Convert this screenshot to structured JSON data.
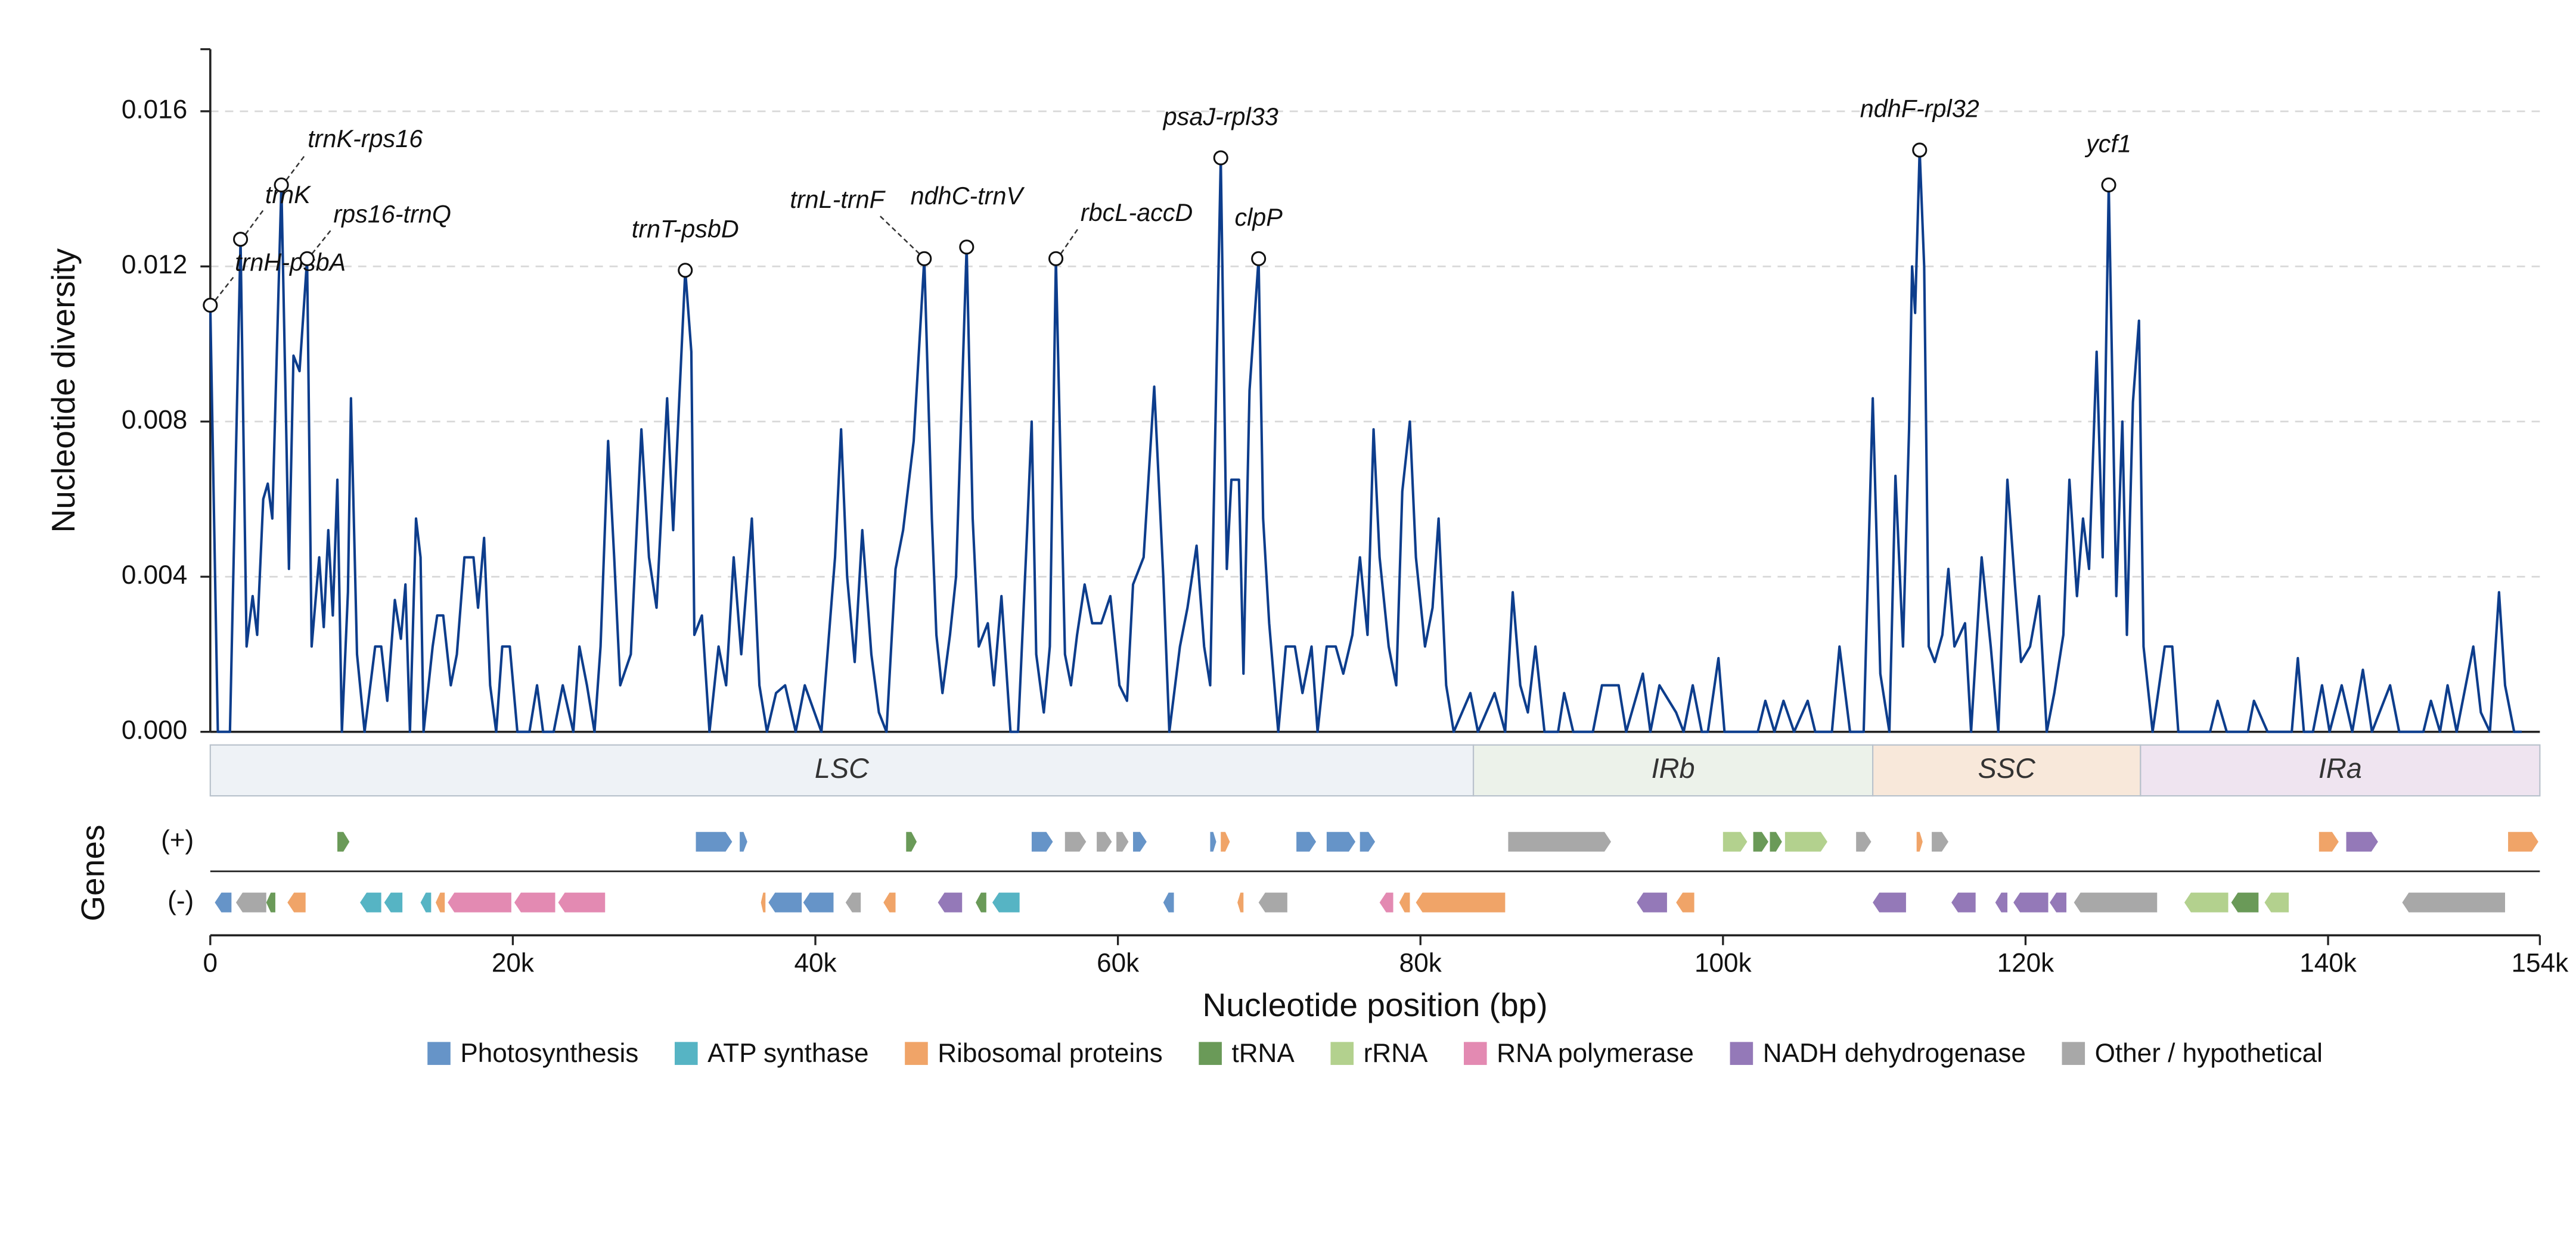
{
  "chart_data": {
    "type": "line",
    "y_label": "Nucleotide diversity",
    "x_label": "Nucleotide position (bp)",
    "genes_label": "Genes",
    "xlim": [
      0,
      154000
    ],
    "ylim": [
      0,
      0.0176
    ],
    "xticks": [
      0,
      {
        "value": 20000,
        "label": "20k"
      },
      {
        "value": 40000,
        "label": "40k"
      },
      {
        "value": 60000,
        "label": "60k"
      },
      {
        "value": 80000,
        "label": "80k"
      },
      {
        "value": 100000,
        "label": "100k"
      },
      {
        "value": 120000,
        "label": "120k"
      },
      {
        "value": 140000,
        "label": "140k"
      },
      {
        "value": 154000,
        "label": "154k"
      }
    ],
    "yticks": [
      {
        "value": 0,
        "label": "0.000"
      },
      {
        "value": 0.004,
        "label": "0.004"
      },
      {
        "value": 0.008,
        "label": "0.008"
      },
      {
        "value": 0.012,
        "label": "0.012"
      },
      {
        "value": 0.016,
        "label": "0.016"
      }
    ],
    "grid": true,
    "color": "#0d3d8c",
    "x": [
      0,
      500,
      1300,
      2000,
      2400,
      2800,
      3100,
      3500,
      3800,
      4100,
      4700,
      5200,
      5500,
      5900,
      6400,
      6700,
      7200,
      7500,
      7800,
      8100,
      8400,
      8700,
      9100,
      9300,
      9700,
      10200,
      10900,
      11300,
      11700,
      12200,
      12600,
      12900,
      13200,
      13600,
      13900,
      14100,
      14700,
      15000,
      15400,
      15900,
      16300,
      16800,
      17400,
      17700,
      18100,
      18500,
      18900,
      19300,
      19800,
      20300,
      21100,
      21600,
      22000,
      22700,
      23300,
      24000,
      24400,
      24900,
      25400,
      25800,
      26300,
      26700,
      27100,
      27800,
      28500,
      29000,
      29500,
      30200,
      30600,
      31400,
      31800,
      32000,
      32500,
      33000,
      33600,
      34100,
      34600,
      35100,
      35800,
      36300,
      36800,
      37400,
      38000,
      38700,
      39300,
      40400,
      41300,
      41700,
      42100,
      42600,
      43100,
      43700,
      44200,
      44700,
      45300,
      45800,
      46500,
      47200,
      47700,
      48000,
      48400,
      48900,
      49300,
      50000,
      50400,
      50800,
      51400,
      51800,
      52300,
      52900,
      53400,
      54000,
      54300,
      54600,
      55100,
      55500,
      55900,
      56500,
      56900,
      57300,
      57800,
      58300,
      58900,
      59500,
      60100,
      60600,
      61000,
      61700,
      62400,
      63000,
      63400,
      64100,
      64600,
      65200,
      65700,
      66100,
      66800,
      67200,
      67500,
      68000,
      68300,
      68700,
      69300,
      69600,
      70000,
      70600,
      71100,
      71700,
      72200,
      72800,
      73200,
      73800,
      74400,
      74900,
      75500,
      76000,
      76500,
      76900,
      77300,
      77900,
      78400,
      78800,
      79300,
      79700,
      80300,
      80800,
      81200,
      81700,
      82200,
      83300,
      83800,
      84900,
      85600,
      86100,
      86600,
      87100,
      87600,
      88200,
      89100,
      89500,
      90100,
      91400,
      92000,
      93100,
      93600,
      94700,
      95200,
      95800,
      96900,
      97400,
      98000,
      98600,
      99000,
      99700,
      100100,
      102300,
      102800,
      103400,
      104000,
      104700,
      105600,
      106100,
      107200,
      107700,
      108400,
      109300,
      109900,
      110400,
      111000,
      111400,
      111900,
      112300,
      112500,
      112700,
      113000,
      113300,
      113600,
      114000,
      114500,
      114900,
      115300,
      116000,
      116400,
      117100,
      117700,
      118200,
      118800,
      119300,
      119700,
      120300,
      120900,
      121400,
      121900,
      122500,
      122900,
      123400,
      123800,
      124200,
      124700,
      125100,
      125500,
      126000,
      126400,
      126700,
      127100,
      127500,
      127800,
      128400,
      129200,
      129700,
      130100,
      132200,
      132700,
      133300,
      134700,
      135100,
      136000,
      137600,
      138000,
      138400,
      139000,
      139600,
      140100,
      140900,
      141600,
      142300,
      142900,
      144100,
      144700,
      146300,
      146800,
      147400,
      147900,
      148500,
      149600,
      150100,
      150700,
      151300,
      151700,
      152300,
      152800
    ],
    "values": [
      0.011,
      0,
      0,
      0.0127,
      0.0022,
      0.0035,
      0.0025,
      0.006,
      0.0064,
      0.0055,
      0.0141,
      0.0042,
      0.0097,
      0.0093,
      0.0122,
      0.0022,
      0.0045,
      0.0027,
      0.0052,
      0.003,
      0.0065,
      0,
      0.0036,
      0.0086,
      0.002,
      0,
      0.0022,
      0.0022,
      0.0008,
      0.0034,
      0.0024,
      0.0038,
      0,
      0.0055,
      0.0045,
      0,
      0.0022,
      0.003,
      0.003,
      0.0012,
      0.002,
      0.0045,
      0.0045,
      0.0032,
      0.005,
      0.0012,
      0,
      0.0022,
      0.0022,
      0,
      0,
      0.0012,
      0,
      0,
      0.0012,
      0,
      0.0022,
      0.0012,
      0,
      0.0022,
      0.0075,
      0.0045,
      0.0012,
      0.002,
      0.0078,
      0.0045,
      0.0032,
      0.0086,
      0.0052,
      0.0119,
      0.0098,
      0.0025,
      0.003,
      0,
      0.0022,
      0.0012,
      0.0045,
      0.002,
      0.0055,
      0.0012,
      0,
      0.001,
      0.0012,
      0,
      0.0012,
      0,
      0.0045,
      0.0078,
      0.004,
      0.0018,
      0.0052,
      0.002,
      0.0005,
      0,
      0.0042,
      0.0052,
      0.0075,
      0.0122,
      0.0055,
      0.0025,
      0.001,
      0.0025,
      0.004,
      0.0125,
      0.0055,
      0.0022,
      0.0028,
      0.0012,
      0.0035,
      0,
      0,
      0.0052,
      0.008,
      0.002,
      0.0005,
      0.0022,
      0.0122,
      0.002,
      0.0012,
      0.0025,
      0.0038,
      0.0028,
      0.0028,
      0.0035,
      0.0012,
      0.0008,
      0.0038,
      0.0045,
      0.0089,
      0.004,
      0,
      0.0022,
      0.0032,
      0.0048,
      0.0022,
      0.0012,
      0.0148,
      0.0042,
      0.0065,
      0.0065,
      0.0015,
      0.0088,
      0.0122,
      0.0055,
      0.0028,
      0,
      0.0022,
      0.0022,
      0.001,
      0.0022,
      0,
      0.0022,
      0.0022,
      0.0015,
      0.0025,
      0.0045,
      0.0025,
      0.0078,
      0.0045,
      0.0022,
      0.0012,
      0.0062,
      0.008,
      0.0045,
      0.0022,
      0.0032,
      0.0055,
      0.0012,
      0,
      0.001,
      0,
      0.001,
      0,
      0.0036,
      0.0012,
      0.0005,
      0.0022,
      0,
      0,
      0.001,
      0,
      0,
      0.0012,
      0.0012,
      0,
      0.0015,
      0,
      0.0012,
      0.0005,
      0,
      0.0012,
      0,
      0,
      0.0019,
      0,
      0,
      0.0008,
      0,
      0.0008,
      0,
      0.0008,
      0,
      0,
      0.0022,
      0,
      0,
      0.0086,
      0.0015,
      0,
      0.0066,
      0.0022,
      0.0078,
      0.012,
      0.0108,
      0.015,
      0.012,
      0.0022,
      0.0018,
      0.0025,
      0.0042,
      0.0022,
      0.0028,
      0,
      0.0045,
      0.0022,
      0,
      0.0065,
      0.0038,
      0.0018,
      0.0022,
      0.0035,
      0,
      0.001,
      0.0025,
      0.0065,
      0.0035,
      0.0055,
      0.0042,
      0.0098,
      0.0045,
      0.0141,
      0.0035,
      0.008,
      0.0025,
      0.0085,
      0.0106,
      0.0022,
      0,
      0.0022,
      0.0022,
      0,
      0,
      0.0008,
      0,
      0,
      0.0008,
      0,
      0,
      0.0019,
      0,
      0,
      0.0012,
      0,
      0.0012,
      0,
      0.0016,
      0,
      0.0012,
      0,
      0,
      0.0008,
      0,
      0.0012,
      0,
      0.0022,
      0.0005,
      0,
      0.0036,
      0.0012,
      0,
      0
    ],
    "annotations": [
      {
        "text": "trnH-psbA",
        "x": 0,
        "y": 0.011
      },
      {
        "text": "trnK",
        "x": 2000,
        "y": 0.0127
      },
      {
        "text": "trnK-rps16",
        "x": 4700,
        "y": 0.0141
      },
      {
        "text": "rps16-trnQ",
        "x": 6400,
        "y": 0.0122
      },
      {
        "text": "trnT-psbD",
        "x": 31400,
        "y": 0.0119
      },
      {
        "text": "trnL-trnF",
        "x": 47200,
        "y": 0.0122
      },
      {
        "text": "ndhC-trnV",
        "x": 50000,
        "y": 0.0125
      },
      {
        "text": "rbcL-accD",
        "x": 55900,
        "y": 0.0122
      },
      {
        "text": "psaJ-rpl33",
        "x": 66800,
        "y": 0.0148
      },
      {
        "text": "clpP",
        "x": 69300,
        "y": 0.0122
      },
      {
        "text": "ndhF-rpl32",
        "x": 113000,
        "y": 0.015
      },
      {
        "text": "ycf1",
        "x": 125500,
        "y": 0.0141
      }
    ],
    "regions": [
      {
        "name": "LSC",
        "start": 0,
        "end": 83500,
        "color": "#eef2f6"
      },
      {
        "name": "IRb",
        "start": 83500,
        "end": 109900,
        "color": "#ecf2ea"
      },
      {
        "name": "SSC",
        "start": 109900,
        "end": 127600,
        "color": "#f8e8da"
      },
      {
        "name": "IRa",
        "start": 127600,
        "end": 154000,
        "color": "#efe4f0"
      }
    ],
    "track_labels": [
      "(+)",
      "(-)"
    ],
    "gene_categories": [
      {
        "name": "Photosynthesis",
        "color": "#6694c8"
      },
      {
        "name": "ATP synthase",
        "color": "#56b4c4"
      },
      {
        "name": "Ribosomal proteins",
        "color": "#f0a468"
      },
      {
        "name": "tRNA",
        "color": "#6a9a58"
      },
      {
        "name": "rRNA",
        "color": "#b3d18e"
      },
      {
        "name": "RNA polymerase",
        "color": "#e38ab2"
      },
      {
        "name": "NADH dehydrogenase",
        "color": "#9479b8"
      },
      {
        "name": "Other / hypothetical",
        "color": "#a8a8a8"
      }
    ],
    "genes": [
      {
        "start": 8400,
        "end": 9200,
        "strand": 0,
        "category": 3
      },
      {
        "start": 32100,
        "end": 34500,
        "strand": 0,
        "category": 0
      },
      {
        "start": 35000,
        "end": 35500,
        "strand": 0,
        "category": 0
      },
      {
        "start": 46000,
        "end": 46700,
        "strand": 0,
        "category": 3
      },
      {
        "start": 54300,
        "end": 55700,
        "strand": 0,
        "category": 0
      },
      {
        "start": 56500,
        "end": 57900,
        "strand": 0,
        "category": 7
      },
      {
        "start": 58600,
        "end": 59600,
        "strand": 0,
        "category": 7
      },
      {
        "start": 59900,
        "end": 60700,
        "strand": 0,
        "category": 7
      },
      {
        "start": 61000,
        "end": 61900,
        "strand": 0,
        "category": 0
      },
      {
        "start": 66100,
        "end": 66500,
        "strand": 0,
        "category": 0
      },
      {
        "start": 66800,
        "end": 67400,
        "strand": 0,
        "category": 2
      },
      {
        "start": 71800,
        "end": 73100,
        "strand": 0,
        "category": 0
      },
      {
        "start": 73800,
        "end": 75700,
        "strand": 0,
        "category": 0
      },
      {
        "start": 76000,
        "end": 77000,
        "strand": 0,
        "category": 0
      },
      {
        "start": 85800,
        "end": 92600,
        "strand": 0,
        "category": 7
      },
      {
        "start": 100000,
        "end": 101600,
        "strand": 0,
        "category": 4
      },
      {
        "start": 102000,
        "end": 103000,
        "strand": 0,
        "category": 3
      },
      {
        "start": 103100,
        "end": 103900,
        "strand": 0,
        "category": 3
      },
      {
        "start": 104100,
        "end": 106900,
        "strand": 0,
        "category": 4
      },
      {
        "start": 108800,
        "end": 109800,
        "strand": 0,
        "category": 7
      },
      {
        "start": 112800,
        "end": 113200,
        "strand": 0,
        "category": 2
      },
      {
        "start": 113800,
        "end": 114900,
        "strand": 0,
        "category": 7
      },
      {
        "start": 139400,
        "end": 140700,
        "strand": 0,
        "category": 2
      },
      {
        "start": 141200,
        "end": 143300,
        "strand": 0,
        "category": 6
      },
      {
        "start": 151900,
        "end": 153900,
        "strand": 0,
        "category": 2
      },
      {
        "start": 300,
        "end": 1400,
        "strand": 1,
        "category": 0
      },
      {
        "start": 1700,
        "end": 3700,
        "strand": 1,
        "category": 7
      },
      {
        "start": 3700,
        "end": 4300,
        "strand": 1,
        "category": 3
      },
      {
        "start": 5100,
        "end": 6300,
        "strand": 1,
        "category": 2
      },
      {
        "start": 9900,
        "end": 11300,
        "strand": 1,
        "category": 1
      },
      {
        "start": 11500,
        "end": 12700,
        "strand": 1,
        "category": 1
      },
      {
        "start": 13900,
        "end": 14600,
        "strand": 1,
        "category": 1
      },
      {
        "start": 14900,
        "end": 15500,
        "strand": 1,
        "category": 2
      },
      {
        "start": 15700,
        "end": 19900,
        "strand": 1,
        "category": 5
      },
      {
        "start": 20100,
        "end": 22800,
        "strand": 1,
        "category": 5
      },
      {
        "start": 23000,
        "end": 26100,
        "strand": 1,
        "category": 5
      },
      {
        "start": 36400,
        "end": 36700,
        "strand": 1,
        "category": 2
      },
      {
        "start": 36900,
        "end": 39100,
        "strand": 1,
        "category": 0
      },
      {
        "start": 39200,
        "end": 41200,
        "strand": 1,
        "category": 0
      },
      {
        "start": 42000,
        "end": 43000,
        "strand": 1,
        "category": 7
      },
      {
        "start": 44500,
        "end": 45300,
        "strand": 1,
        "category": 2
      },
      {
        "start": 48100,
        "end": 49700,
        "strand": 1,
        "category": 6
      },
      {
        "start": 50600,
        "end": 51300,
        "strand": 1,
        "category": 3
      },
      {
        "start": 51700,
        "end": 53500,
        "strand": 1,
        "category": 1
      },
      {
        "start": 63000,
        "end": 63700,
        "strand": 1,
        "category": 0
      },
      {
        "start": 67900,
        "end": 68300,
        "strand": 1,
        "category": 2
      },
      {
        "start": 69300,
        "end": 71200,
        "strand": 1,
        "category": 7
      },
      {
        "start": 77300,
        "end": 78200,
        "strand": 1,
        "category": 5
      },
      {
        "start": 78600,
        "end": 79300,
        "strand": 1,
        "category": 2
      },
      {
        "start": 79700,
        "end": 85600,
        "strand": 1,
        "category": 2
      },
      {
        "start": 94300,
        "end": 96300,
        "strand": 1,
        "category": 6
      },
      {
        "start": 96900,
        "end": 98100,
        "strand": 1,
        "category": 2
      },
      {
        "start": 109900,
        "end": 112100,
        "strand": 1,
        "category": 6
      },
      {
        "start": 115100,
        "end": 116700,
        "strand": 1,
        "category": 6
      },
      {
        "start": 118000,
        "end": 118800,
        "strand": 1,
        "category": 6
      },
      {
        "start": 119200,
        "end": 121500,
        "strand": 1,
        "category": 6
      },
      {
        "start": 121600,
        "end": 122700,
        "strand": 1,
        "category": 6
      },
      {
        "start": 123200,
        "end": 128700,
        "strand": 1,
        "category": 7
      },
      {
        "start": 130500,
        "end": 133400,
        "strand": 1,
        "category": 4
      },
      {
        "start": 133600,
        "end": 135400,
        "strand": 1,
        "category": 3
      },
      {
        "start": 135800,
        "end": 137400,
        "strand": 1,
        "category": 4
      },
      {
        "start": 144900,
        "end": 151700,
        "strand": 1,
        "category": 7
      }
    ]
  }
}
